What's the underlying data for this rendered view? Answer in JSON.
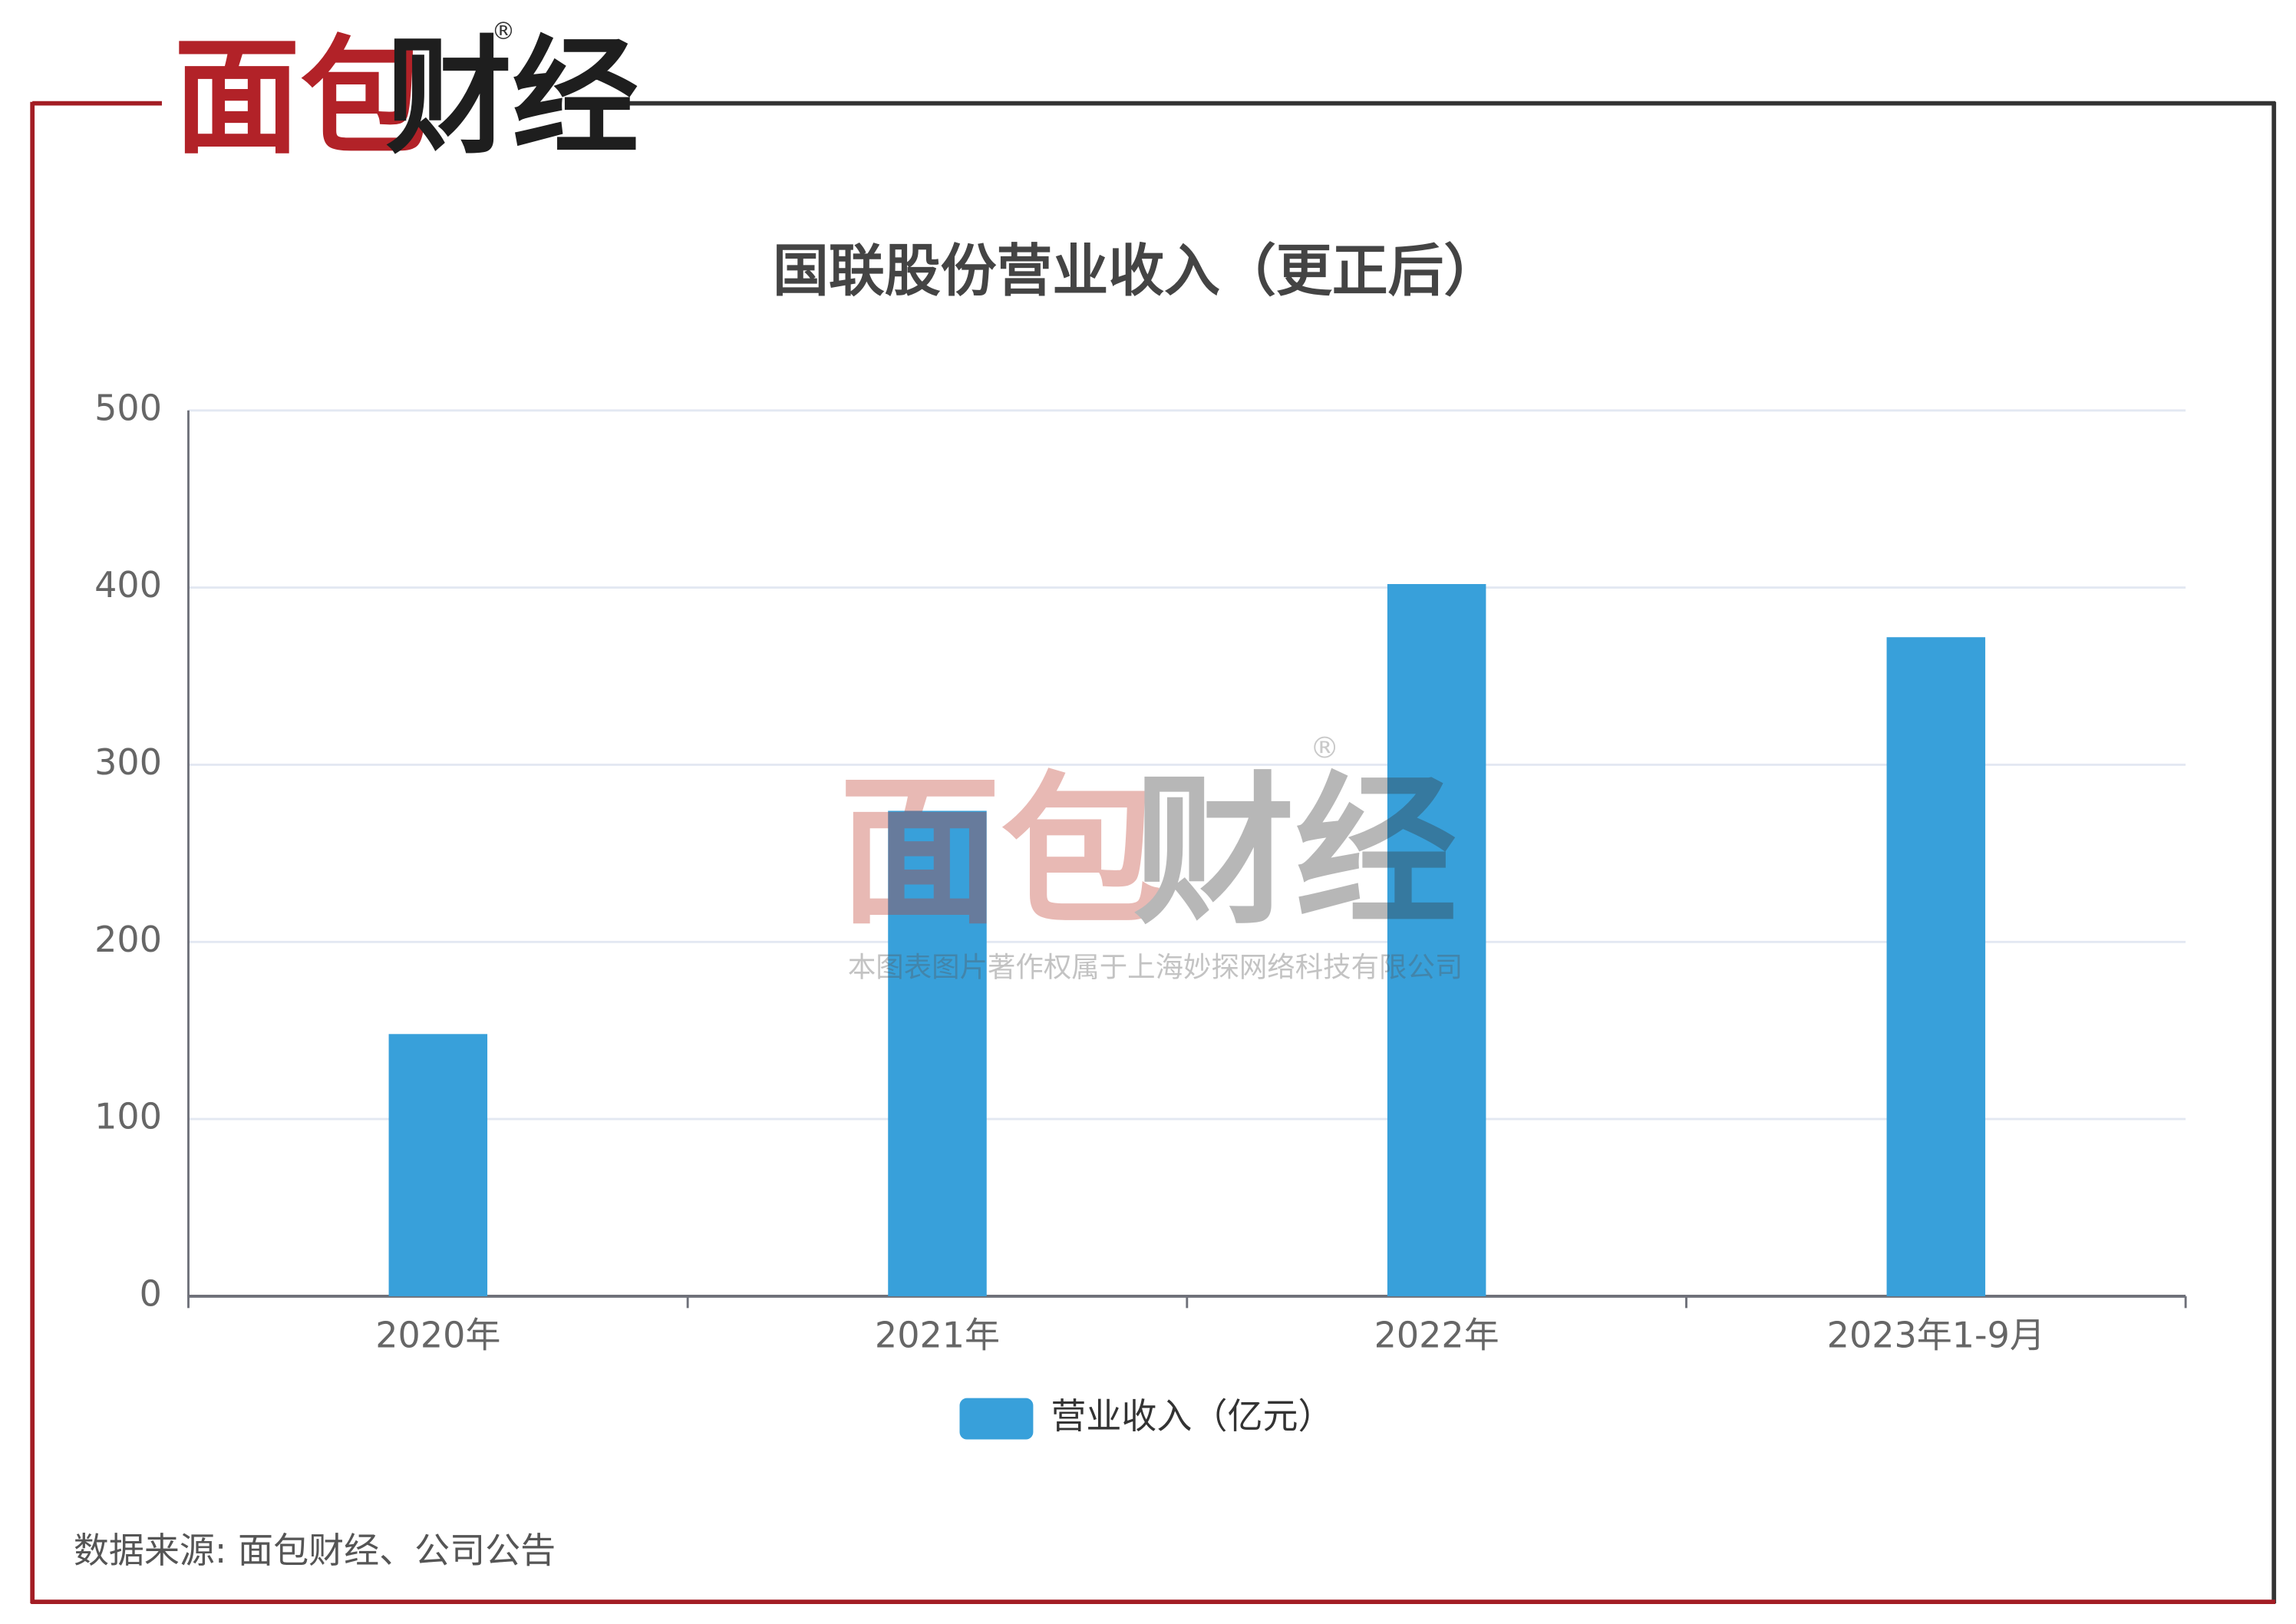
{
  "header": {
    "logo_red": "面包",
    "logo_dark": "财经",
    "logo_mark": "®"
  },
  "chart_data": {
    "type": "bar",
    "title": "国联股份营业收入（更正后）",
    "categories": [
      "2020年",
      "2021年",
      "2022年",
      "2023年1-9月"
    ],
    "series": [
      {
        "name": "营业收入（亿元）",
        "color": "#38a0da",
        "values": [
          148,
          274,
          402,
          372
        ]
      }
    ],
    "ylim": [
      0,
      500
    ],
    "yticks": [
      0,
      100,
      200,
      300,
      400,
      500
    ],
    "grid": true,
    "legend": "bottom"
  },
  "watermark": {
    "logo_red": "面包",
    "logo_dark": "财经",
    "logo_mark": "®",
    "text": "本图表图片著作权属于上海妙探网络科技有限公司"
  },
  "source": "数据来源: 面包财经、公司公告"
}
